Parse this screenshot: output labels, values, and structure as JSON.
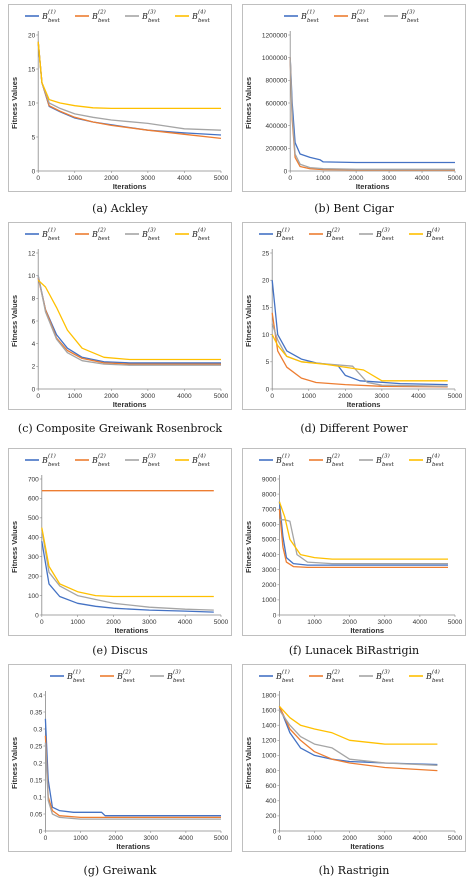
{
  "colors": {
    "B1": "#4472c4",
    "B2": "#ed7d31",
    "B3": "#a5a5a5",
    "B4": "#ffc000"
  },
  "captions": [
    "(a)  Ackley",
    "(b)  Bent Cigar",
    "(c)  Composite Greiwank Rosenbrock",
    "(d)  Different Power",
    "(e)  Discus",
    "(f)  Lunacek BiRastrigin",
    "(g)  Greiwank",
    "(h)  Rastrigin"
  ],
  "legend": {
    "base": "B",
    "sub": "best",
    "sups": [
      "(1)",
      "(2)",
      "(3)",
      "(4)"
    ]
  },
  "chart_data": [
    {
      "type": "line",
      "title": "(a) Ackley",
      "xlabel": "Iterations",
      "ylabel": "Fitness Values",
      "xlim": [
        0,
        5000
      ],
      "ylim": [
        0,
        20
      ],
      "xticks": [
        "0",
        "1000",
        "2000",
        "3000",
        "4000",
        "5000"
      ],
      "yticks": [
        "0",
        "5",
        "10",
        "15",
        "20"
      ],
      "series": [
        {
          "name": "B(1)best",
          "x": [
            0,
            100,
            300,
            600,
            1000,
            1500,
            2000,
            3000,
            4000,
            5000
          ],
          "y": [
            19,
            13,
            9.5,
            8.7,
            7.8,
            7.2,
            6.8,
            6.0,
            5.6,
            5.3
          ]
        },
        {
          "name": "B(2)best",
          "x": [
            0,
            100,
            300,
            600,
            1000,
            1500,
            2000,
            3000,
            4000,
            5000
          ],
          "y": [
            19,
            13,
            9.6,
            8.8,
            7.9,
            7.2,
            6.7,
            6.0,
            5.4,
            4.8
          ]
        },
        {
          "name": "B(3)best",
          "x": [
            0,
            100,
            300,
            600,
            1000,
            1500,
            2000,
            3000,
            4000,
            5000
          ],
          "y": [
            19,
            13,
            10,
            9.2,
            8.4,
            7.9,
            7.5,
            7.0,
            6.2,
            6.0
          ]
        },
        {
          "name": "B(4)best",
          "x": [
            0,
            100,
            300,
            600,
            1000,
            1500,
            2000,
            3000,
            4000,
            5000
          ],
          "y": [
            19,
            13,
            10.5,
            10,
            9.6,
            9.3,
            9.2,
            9.2,
            9.2,
            9.2
          ]
        }
      ]
    },
    {
      "type": "line",
      "title": "(b) Bent Cigar",
      "xlabel": "Iterations",
      "ylabel": "Fitness Values",
      "xlim": [
        0,
        5000
      ],
      "ylim": [
        0,
        1200000
      ],
      "xticks": [
        "0",
        "1000",
        "2000",
        "3000",
        "4000",
        "5000"
      ],
      "yticks": [
        "0",
        "200000",
        "400000",
        "600000",
        "800000",
        "1000000",
        "1200000"
      ],
      "series": [
        {
          "name": "B(1)best",
          "x": [
            0,
            60,
            150,
            300,
            600,
            900,
            1000,
            2000,
            5000
          ],
          "y": [
            1000000,
            600000,
            250000,
            150000,
            120000,
            100000,
            80000,
            75000,
            75000
          ]
        },
        {
          "name": "B(2)best",
          "x": [
            0,
            60,
            150,
            300,
            600,
            1000,
            2000,
            5000
          ],
          "y": [
            1000000,
            450000,
            120000,
            40000,
            20000,
            12000,
            10000,
            10000
          ]
        },
        {
          "name": "B(3)best",
          "x": [
            0,
            60,
            150,
            300,
            600,
            1000,
            2000,
            5000
          ],
          "y": [
            1000000,
            500000,
            150000,
            60000,
            30000,
            20000,
            15000,
            15000
          ]
        }
      ]
    },
    {
      "type": "line",
      "title": "(c) Composite Greiwank Rosenbrock",
      "xlabel": "Iterations",
      "ylabel": "Fitness Values",
      "xlim": [
        0,
        5000
      ],
      "ylim": [
        0,
        12
      ],
      "xticks": [
        "0",
        "1000",
        "2000",
        "3000",
        "4000",
        "5000"
      ],
      "yticks": [
        "0",
        "2",
        "4",
        "6",
        "8",
        "10",
        "12"
      ],
      "series": [
        {
          "name": "B(1)best",
          "x": [
            0,
            200,
            500,
            800,
            1200,
            1800,
            2500,
            5000
          ],
          "y": [
            10,
            7,
            4.8,
            3.6,
            2.8,
            2.4,
            2.3,
            2.3
          ]
        },
        {
          "name": "B(2)best",
          "x": [
            0,
            200,
            500,
            800,
            1200,
            1800,
            2500,
            5000
          ],
          "y": [
            9.8,
            7,
            4.5,
            3.4,
            2.7,
            2.3,
            2.2,
            2.2
          ]
        },
        {
          "name": "B(3)best",
          "x": [
            0,
            200,
            500,
            800,
            1200,
            1800,
            2500,
            5000
          ],
          "y": [
            10,
            6.8,
            4.4,
            3.2,
            2.5,
            2.2,
            2.1,
            2.1
          ]
        },
        {
          "name": "B(4)best",
          "x": [
            0,
            200,
            500,
            800,
            1200,
            1800,
            2500,
            5000
          ],
          "y": [
            9.6,
            9,
            7.2,
            5.2,
            3.6,
            2.8,
            2.6,
            2.6
          ]
        }
      ]
    },
    {
      "type": "line",
      "title": "(d) Different Power",
      "xlabel": "Iterations",
      "ylabel": "Fitness Values",
      "xlim": [
        0,
        5000
      ],
      "ylim": [
        0,
        25
      ],
      "xticks": [
        "0",
        "1000",
        "2000",
        "3000",
        "4000",
        "5000"
      ],
      "yticks": [
        "0",
        "5",
        "10",
        "15",
        "20",
        "25"
      ],
      "series": [
        {
          "name": "B(1)best",
          "x": [
            0,
            150,
            400,
            800,
            1200,
            1800,
            2000,
            2400,
            3500,
            4800
          ],
          "y": [
            20,
            10,
            7,
            5.5,
            4.8,
            4.3,
            2.5,
            1.5,
            1.0,
            0.8
          ]
        },
        {
          "name": "B(2)best",
          "x": [
            0,
            150,
            400,
            800,
            1200,
            2000,
            3000,
            4800
          ],
          "y": [
            14,
            7,
            4,
            2,
            1.2,
            0.8,
            0.5,
            0.4
          ]
        },
        {
          "name": "B(3)best",
          "x": [
            0,
            150,
            400,
            800,
            1500,
            2200,
            2600,
            3000,
            4800
          ],
          "y": [
            12,
            9,
            6,
            5,
            4.6,
            4.2,
            1.2,
            0.7,
            0.5
          ]
        },
        {
          "name": "B(4)best",
          "x": [
            0,
            150,
            400,
            800,
            1500,
            2500,
            3000,
            4800
          ],
          "y": [
            10,
            8,
            6,
            5,
            4.5,
            3.5,
            1.5,
            1.5
          ]
        }
      ]
    },
    {
      "type": "line",
      "title": "(e) Discus",
      "xlabel": "Iterations",
      "ylabel": "Fitness Values",
      "xlim": [
        0,
        5000
      ],
      "ylim": [
        0,
        700
      ],
      "xticks": [
        "0",
        "1000",
        "2000",
        "3000",
        "4000",
        "5000"
      ],
      "yticks": [
        "0",
        "100",
        "200",
        "300",
        "400",
        "500",
        "600",
        "700"
      ],
      "series": [
        {
          "name": "B(1)best",
          "x": [
            0,
            200,
            500,
            1000,
            1500,
            2000,
            3000,
            4000,
            4800
          ],
          "y": [
            380,
            160,
            95,
            60,
            45,
            35,
            25,
            20,
            15
          ]
        },
        {
          "name": "B(2)best",
          "x": [
            0,
            4800
          ],
          "y": [
            640,
            640
          ]
        },
        {
          "name": "B(3)best",
          "x": [
            0,
            200,
            500,
            1000,
            1500,
            2000,
            3000,
            4000,
            4800
          ],
          "y": [
            440,
            220,
            150,
            100,
            80,
            60,
            40,
            30,
            25
          ]
        },
        {
          "name": "B(4)best",
          "x": [
            0,
            200,
            500,
            1000,
            1500,
            2000,
            3000,
            4000,
            4800
          ],
          "y": [
            450,
            250,
            160,
            120,
            100,
            95,
            95,
            95,
            95
          ]
        }
      ]
    },
    {
      "type": "line",
      "title": "(f) Lunacek BiRastrigin",
      "xlabel": "Iterations",
      "ylabel": "Fitness Values",
      "xlim": [
        0,
        5000
      ],
      "ylim": [
        0,
        9000
      ],
      "xticks": [
        "0",
        "1000",
        "2000",
        "3000",
        "4000",
        "5000"
      ],
      "yticks": [
        "0",
        "1000",
        "2000",
        "3000",
        "4000",
        "5000",
        "6000",
        "7000",
        "8000",
        "9000"
      ],
      "series": [
        {
          "name": "B(1)best",
          "x": [
            0,
            100,
            200,
            400,
            800,
            1500,
            4800
          ],
          "y": [
            7500,
            5200,
            3800,
            3400,
            3300,
            3300,
            3300
          ]
        },
        {
          "name": "B(2)best",
          "x": [
            0,
            100,
            200,
            400,
            800,
            1500,
            4800
          ],
          "y": [
            7000,
            4500,
            3500,
            3200,
            3150,
            3150,
            3150
          ]
        },
        {
          "name": "B(3)best",
          "x": [
            0,
            150,
            300,
            500,
            800,
            1500,
            4800
          ],
          "y": [
            6300,
            6300,
            6200,
            4000,
            3500,
            3400,
            3400
          ]
        },
        {
          "name": "B(4)best",
          "x": [
            0,
            150,
            300,
            600,
            1000,
            1500,
            4800
          ],
          "y": [
            7500,
            6500,
            5000,
            4000,
            3800,
            3700,
            3700
          ]
        }
      ]
    },
    {
      "type": "line",
      "title": "(g) Greiwank",
      "xlabel": "Iterations",
      "ylabel": "Fitness Values",
      "xlim": [
        0,
        5000
      ],
      "ylim": [
        0,
        0.4
      ],
      "xticks": [
        "0",
        "1000",
        "2000",
        "3000",
        "4000",
        "5000"
      ],
      "yticks": [
        "0",
        "0.05",
        "0.1",
        "0.15",
        "0.2",
        "0.25",
        "0.3",
        "0.35",
        "0.4"
      ],
      "series": [
        {
          "name": "B(1)best",
          "x": [
            0,
            80,
            200,
            400,
            800,
            1600,
            1700,
            5000
          ],
          "y": [
            0.33,
            0.15,
            0.07,
            0.06,
            0.055,
            0.055,
            0.045,
            0.045
          ]
        },
        {
          "name": "B(2)best",
          "x": [
            0,
            80,
            200,
            400,
            1000,
            5000
          ],
          "y": [
            0.28,
            0.1,
            0.06,
            0.045,
            0.04,
            0.04
          ]
        },
        {
          "name": "B(3)best",
          "x": [
            0,
            80,
            200,
            400,
            1000,
            5000
          ],
          "y": [
            0.26,
            0.09,
            0.05,
            0.04,
            0.035,
            0.035
          ]
        }
      ]
    },
    {
      "type": "line",
      "title": "(h) Rastrigin",
      "xlabel": "Iterations",
      "ylabel": "Fitness Values",
      "xlim": [
        0,
        5000
      ],
      "ylim": [
        0,
        1800
      ],
      "xticks": [
        "0",
        "1000",
        "2000",
        "3000",
        "4000",
        "5000"
      ],
      "yticks": [
        "0",
        "200",
        "400",
        "600",
        "800",
        "1000",
        "1200",
        "1400",
        "1600",
        "1800"
      ],
      "series": [
        {
          "name": "B(1)best",
          "x": [
            0,
            300,
            600,
            1000,
            1500,
            2000,
            3000,
            4500
          ],
          "y": [
            1650,
            1300,
            1100,
            1000,
            950,
            920,
            900,
            880
          ]
        },
        {
          "name": "B(2)best",
          "x": [
            0,
            300,
            600,
            1000,
            1500,
            2000,
            3000,
            4500
          ],
          "y": [
            1650,
            1350,
            1200,
            1050,
            950,
            900,
            840,
            800
          ]
        },
        {
          "name": "B(3)best",
          "x": [
            0,
            300,
            600,
            1000,
            1500,
            2000,
            3000,
            4500
          ],
          "y": [
            1600,
            1400,
            1250,
            1150,
            1100,
            950,
            900,
            870
          ]
        },
        {
          "name": "B(4)best",
          "x": [
            0,
            300,
            600,
            1000,
            1500,
            2000,
            3000,
            4500
          ],
          "y": [
            1650,
            1500,
            1400,
            1350,
            1300,
            1200,
            1150,
            1150
          ]
        }
      ]
    }
  ]
}
